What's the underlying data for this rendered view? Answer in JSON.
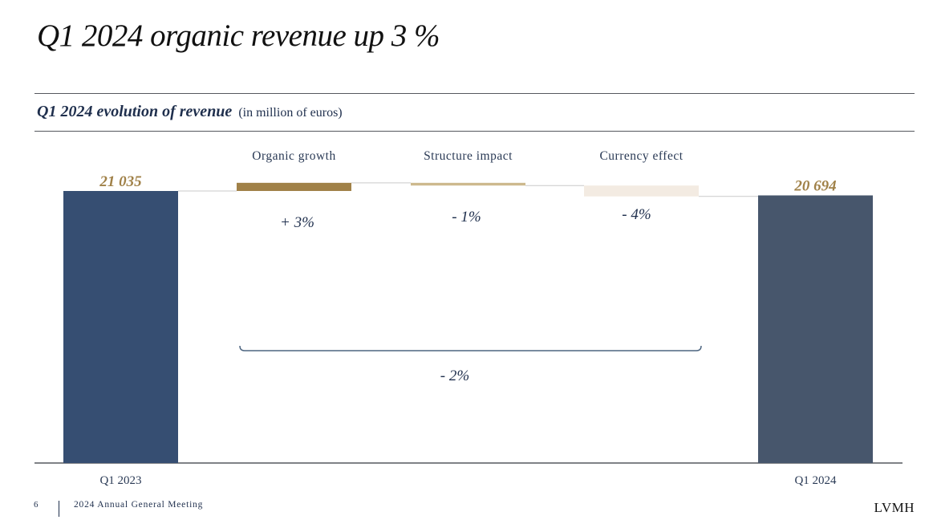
{
  "page": {
    "title": "Q1 2024 organic revenue up 3 %",
    "subtitle_strong": "Q1 2024 evolution of revenue",
    "subtitle_unit": "(in million of euros)",
    "page_number": "6",
    "event": "2024 Annual General Meeting",
    "logo": "LVMH"
  },
  "chart_data": {
    "type": "bar",
    "subtype": "waterfall",
    "unit": "million of euros",
    "categories": [
      "Q1 2023",
      "Organic growth",
      "Structure impact",
      "Currency effect",
      "Q1 2024"
    ],
    "start": {
      "label": "Q1 2023",
      "value": 21035,
      "value_label": "21 035"
    },
    "steps": [
      {
        "label": "Organic growth",
        "pct_label": "+ 3%",
        "percent": 3
      },
      {
        "label": "Structure impact",
        "pct_label": "- 1%",
        "percent": -1
      },
      {
        "label": "Currency effect",
        "pct_label": "- 4%",
        "percent": -4
      }
    ],
    "end": {
      "label": "Q1 2024",
      "value": 20694,
      "value_label": "20 694"
    },
    "total_change_label": "- 2%",
    "colors": {
      "start_bar": "#364e72",
      "end_bar": "#47566c",
      "organic": "#a08148",
      "structure": "#cdb98e",
      "currency": "#f3ebe2",
      "value_labels": "#a08148",
      "bracket": "#4d6580",
      "text": "#1f2f4d"
    }
  }
}
